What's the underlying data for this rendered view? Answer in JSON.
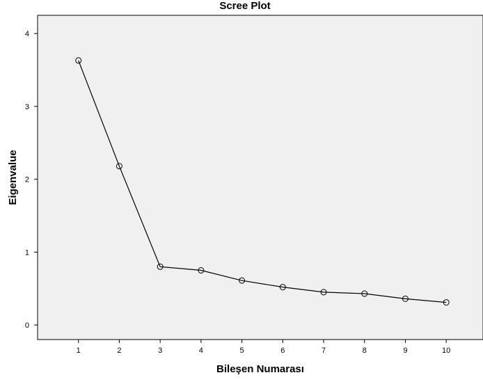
{
  "chart_data": {
    "type": "line",
    "title": "Scree Plot",
    "xlabel": "Bileşen Numarası",
    "ylabel": "Eigenvalue",
    "x": [
      1,
      2,
      3,
      4,
      5,
      6,
      7,
      8,
      9,
      10
    ],
    "series": [
      {
        "values": [
          3.63,
          2.18,
          0.8,
          0.75,
          0.61,
          0.52,
          0.45,
          0.43,
          0.36,
          0.31
        ]
      }
    ],
    "xlim": [
      0,
      10.9
    ],
    "ylim": [
      -0.2,
      4.25
    ],
    "xticks": [
      1,
      2,
      3,
      4,
      5,
      6,
      7,
      8,
      9,
      10
    ],
    "xtick_labels": [
      "1",
      "2",
      "3",
      "4",
      "5",
      "6",
      "7",
      "8",
      "9",
      "10"
    ],
    "yticks": [
      0,
      1,
      2,
      3,
      4
    ],
    "ytick_labels": [
      "0",
      "1",
      "2",
      "3",
      "4"
    ],
    "grid": false,
    "legend": false,
    "marker": "open-circle",
    "colors": {
      "plot_background": "#f0f0f0",
      "line": "#000000",
      "frame": "#000000"
    }
  }
}
